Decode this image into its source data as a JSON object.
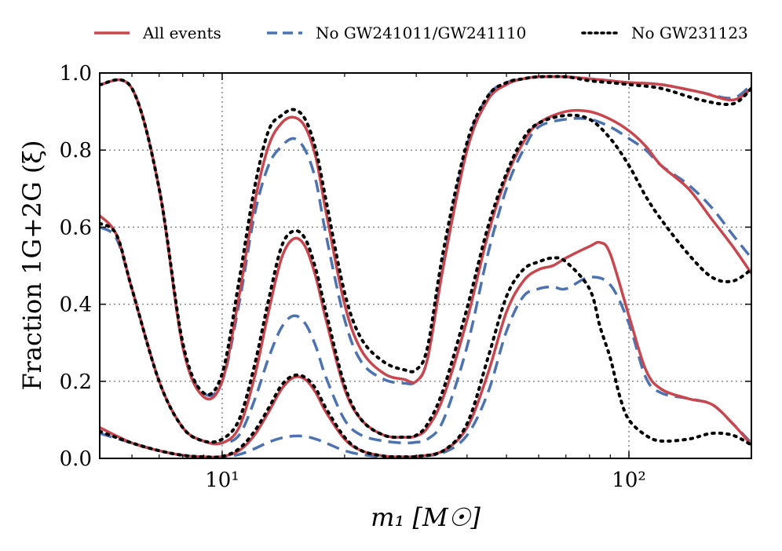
{
  "chart_data": {
    "type": "line",
    "xscale": "log",
    "xlim": [
      5,
      200
    ],
    "ylim": [
      0,
      1
    ],
    "xlabel": "m₁ [M☉]",
    "ylabel": "Fraction 1G+2G (ξ)",
    "grid": true,
    "legend_position": "top",
    "xticks": [
      {
        "value": 10,
        "label": "10¹"
      },
      {
        "value": 100,
        "label": "10²"
      }
    ],
    "yticks": [
      {
        "value": 0.0,
        "label": "0.0"
      },
      {
        "value": 0.2,
        "label": "0.2"
      },
      {
        "value": 0.4,
        "label": "0.4"
      },
      {
        "value": 0.6,
        "label": "0.6"
      },
      {
        "value": 0.8,
        "label": "0.8"
      },
      {
        "value": 1.0,
        "label": "1.0"
      }
    ],
    "series": [
      {
        "name": "All events",
        "color": "#c8474f",
        "dash": "solid",
        "legend": true,
        "bands": [
          {
            "x": [
              5,
              6,
              7,
              8,
              9,
              10,
              11,
              12,
              13,
              14,
              15,
              16,
              17,
              18,
              20,
              22,
              25,
              28,
              30,
              32,
              35,
              40,
              45,
              50,
              55,
              60,
              70,
              80,
              90,
              100,
              120,
              150,
              180,
              200
            ],
            "y": [
              0.97,
              0.96,
              0.7,
              0.29,
              0.16,
              0.2,
              0.42,
              0.66,
              0.81,
              0.87,
              0.885,
              0.86,
              0.78,
              0.64,
              0.4,
              0.28,
              0.22,
              0.205,
              0.2,
              0.26,
              0.5,
              0.8,
              0.93,
              0.97,
              0.985,
              0.99,
              0.99,
              0.985,
              0.98,
              0.975,
              0.97,
              0.95,
              0.93,
              0.96
            ]
          },
          {
            "x": [
              5,
              5.5,
              6,
              7,
              8,
              9,
              10,
              11,
              12,
              13,
              14,
              15,
              16,
              17,
              18,
              20,
              22,
              25,
              28,
              30,
              32,
              35,
              40,
              45,
              50,
              55,
              60,
              70,
              80,
              90,
              100,
              110,
              120,
              140,
              160,
              180,
              200
            ],
            "y": [
              0.63,
              0.58,
              0.44,
              0.2,
              0.08,
              0.045,
              0.04,
              0.08,
              0.21,
              0.38,
              0.52,
              0.57,
              0.55,
              0.47,
              0.36,
              0.18,
              0.1,
              0.06,
              0.055,
              0.058,
              0.08,
              0.16,
              0.36,
              0.58,
              0.73,
              0.82,
              0.87,
              0.9,
              0.9,
              0.88,
              0.85,
              0.81,
              0.76,
              0.7,
              0.62,
              0.55,
              0.48
            ]
          },
          {
            "x": [
              5,
              6,
              7,
              8,
              9,
              10,
              11,
              12,
              13,
              14,
              15,
              16,
              17,
              18,
              20,
              22,
              25,
              28,
              30,
              35,
              40,
              45,
              50,
              55,
              60,
              65,
              70,
              80,
              85,
              90,
              100,
              110,
              120,
              140,
              160,
              180,
              200
            ],
            "y": [
              0.08,
              0.04,
              0.02,
              0.008,
              0.004,
              0.005,
              0.02,
              0.06,
              0.12,
              0.18,
              0.21,
              0.205,
              0.17,
              0.12,
              0.05,
              0.02,
              0.006,
              0.004,
              0.005,
              0.02,
              0.08,
              0.22,
              0.38,
              0.46,
              0.49,
              0.5,
              0.52,
              0.55,
              0.56,
              0.53,
              0.37,
              0.23,
              0.18,
              0.155,
              0.14,
              0.09,
              0.035
            ]
          }
        ]
      },
      {
        "name": "No GW241011/GW241110",
        "color": "#4c72b0",
        "dash": "dashed",
        "legend": true,
        "bands": [
          {
            "x": [
              5,
              6,
              7,
              8,
              9,
              10,
              11,
              12,
              13,
              14,
              15,
              16,
              17,
              18,
              20,
              22,
              25,
              28,
              30,
              32,
              35,
              40,
              45,
              50,
              55,
              60,
              70,
              80,
              90,
              100,
              120,
              150,
              180,
              200
            ],
            "y": [
              0.97,
              0.96,
              0.7,
              0.29,
              0.17,
              0.2,
              0.4,
              0.63,
              0.76,
              0.81,
              0.83,
              0.8,
              0.72,
              0.58,
              0.36,
              0.25,
              0.205,
              0.195,
              0.2,
              0.26,
              0.51,
              0.81,
              0.94,
              0.975,
              0.985,
              0.99,
              0.99,
              0.985,
              0.98,
              0.975,
              0.97,
              0.95,
              0.935,
              0.97
            ]
          },
          {
            "x": [
              5,
              5.5,
              6,
              7,
              8,
              9,
              10,
              11,
              12,
              13,
              14,
              15,
              16,
              17,
              18,
              20,
              22,
              25,
              28,
              30,
              32,
              35,
              40,
              45,
              50,
              55,
              60,
              70,
              80,
              90,
              100,
              110,
              120,
              140,
              160,
              180,
              200
            ],
            "y": [
              0.6,
              0.57,
              0.44,
              0.2,
              0.08,
              0.045,
              0.04,
              0.06,
              0.15,
              0.26,
              0.34,
              0.37,
              0.35,
              0.29,
              0.21,
              0.1,
              0.06,
              0.045,
              0.04,
              0.042,
              0.05,
              0.1,
              0.29,
              0.53,
              0.7,
              0.8,
              0.86,
              0.88,
              0.88,
              0.86,
              0.83,
              0.8,
              0.76,
              0.71,
              0.65,
              0.58,
              0.52
            ]
          },
          {
            "x": [
              5,
              6,
              7,
              8,
              9,
              10,
              11,
              12,
              13,
              14,
              15,
              16,
              17,
              18,
              20,
              22,
              25,
              28,
              30,
              35,
              40,
              45,
              50,
              55,
              60,
              65,
              70,
              80,
              90,
              100,
              110,
              120,
              140,
              160,
              180,
              200
            ],
            "y": [
              0.065,
              0.04,
              0.02,
              0.008,
              0.004,
              0.004,
              0.01,
              0.025,
              0.042,
              0.053,
              0.058,
              0.057,
              0.05,
              0.04,
              0.02,
              0.01,
              0.004,
              0.004,
              0.005,
              0.015,
              0.06,
              0.17,
              0.33,
              0.42,
              0.44,
              0.445,
              0.44,
              0.47,
              0.45,
              0.35,
              0.21,
              0.17,
              0.155,
              0.14,
              0.09,
              0.04
            ]
          }
        ]
      },
      {
        "name": "No GW231123",
        "color": "#000000",
        "dash": "dotted",
        "legend": true,
        "bands": [
          {
            "x": [
              5,
              6,
              7,
              8,
              9,
              10,
              11,
              12,
              13,
              14,
              15,
              16,
              17,
              18,
              20,
              22,
              25,
              28,
              30,
              32,
              35,
              40,
              45,
              50,
              55,
              60,
              70,
              80,
              90,
              100,
              120,
              150,
              180,
              200
            ],
            "y": [
              0.97,
              0.96,
              0.7,
              0.3,
              0.17,
              0.22,
              0.46,
              0.7,
              0.85,
              0.89,
              0.905,
              0.88,
              0.8,
              0.67,
              0.43,
              0.31,
              0.25,
              0.23,
              0.23,
              0.29,
              0.54,
              0.82,
              0.94,
              0.975,
              0.985,
              0.99,
              0.99,
              0.98,
              0.975,
              0.97,
              0.96,
              0.93,
              0.92,
              0.96
            ]
          },
          {
            "x": [
              5,
              5.5,
              6,
              7,
              8,
              9,
              10,
              11,
              12,
              13,
              14,
              15,
              16,
              17,
              18,
              20,
              22,
              25,
              28,
              30,
              32,
              35,
              40,
              45,
              50,
              55,
              60,
              70,
              80,
              90,
              100,
              110,
              120,
              140,
              160,
              180,
              200
            ],
            "y": [
              0.61,
              0.58,
              0.44,
              0.2,
              0.08,
              0.045,
              0.05,
              0.1,
              0.24,
              0.41,
              0.55,
              0.59,
              0.57,
              0.49,
              0.38,
              0.19,
              0.1,
              0.06,
              0.055,
              0.06,
              0.09,
              0.18,
              0.39,
              0.6,
              0.74,
              0.83,
              0.87,
              0.89,
              0.88,
              0.83,
              0.76,
              0.68,
              0.62,
              0.53,
              0.47,
              0.46,
              0.49
            ]
          },
          {
            "x": [
              5,
              6,
              7,
              8,
              9,
              10,
              11,
              12,
              13,
              14,
              15,
              16,
              17,
              18,
              20,
              22,
              25,
              28,
              30,
              35,
              40,
              45,
              50,
              55,
              60,
              65,
              70,
              80,
              85,
              90,
              95,
              100,
              110,
              120,
              140,
              160,
              180,
              200
            ],
            "y": [
              0.07,
              0.04,
              0.02,
              0.008,
              0.004,
              0.005,
              0.025,
              0.07,
              0.13,
              0.19,
              0.215,
              0.21,
              0.18,
              0.13,
              0.055,
              0.02,
              0.006,
              0.004,
              0.005,
              0.02,
              0.09,
              0.26,
              0.42,
              0.49,
              0.51,
              0.52,
              0.51,
              0.44,
              0.34,
              0.26,
              0.16,
              0.1,
              0.06,
              0.045,
              0.05,
              0.065,
              0.06,
              0.035
            ]
          }
        ]
      }
    ]
  }
}
